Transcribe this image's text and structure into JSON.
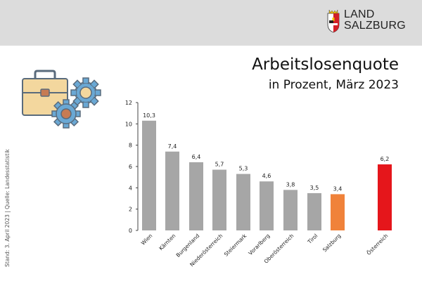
{
  "brand": {
    "line1": "LAND",
    "line2": "SALZBURG"
  },
  "title": "Arbeitslosenquote",
  "subtitle": "in Prozent, März 2023",
  "side_note": "Stand: 3. April 2023 | Quelle: Landesstatistik",
  "colors": {
    "default_bar": "#a6a6a6",
    "salzburg_bar": "#f0823a",
    "austria_bar": "#e5161b",
    "header_bg": "#dcdcdc"
  },
  "chart_data": {
    "type": "bar",
    "title": "Arbeitslosenquote",
    "subtitle": "in Prozent, März 2023",
    "xlabel": "",
    "ylabel": "",
    "ylim": [
      0,
      12
    ],
    "yticks": [
      0,
      2,
      4,
      6,
      8,
      10,
      12
    ],
    "categories": [
      "Wien",
      "Kärnten",
      "Burgenland",
      "Niederösterreich",
      "Steiermark",
      "Vorarlberg",
      "Oberösterreich",
      "Tirol",
      "Salzburg",
      "Österreich"
    ],
    "values": [
      10.3,
      7.4,
      6.4,
      5.7,
      5.3,
      4.6,
      3.8,
      3.5,
      3.4,
      6.2
    ],
    "value_labels": [
      "10,3",
      "7,4",
      "6,4",
      "5,7",
      "5,3",
      "4,6",
      "3,8",
      "3,5",
      "3,4",
      "6,2"
    ],
    "highlight": {
      "Salzburg": "#f0823a",
      "Österreich": "#e5161b"
    },
    "grid": false
  }
}
